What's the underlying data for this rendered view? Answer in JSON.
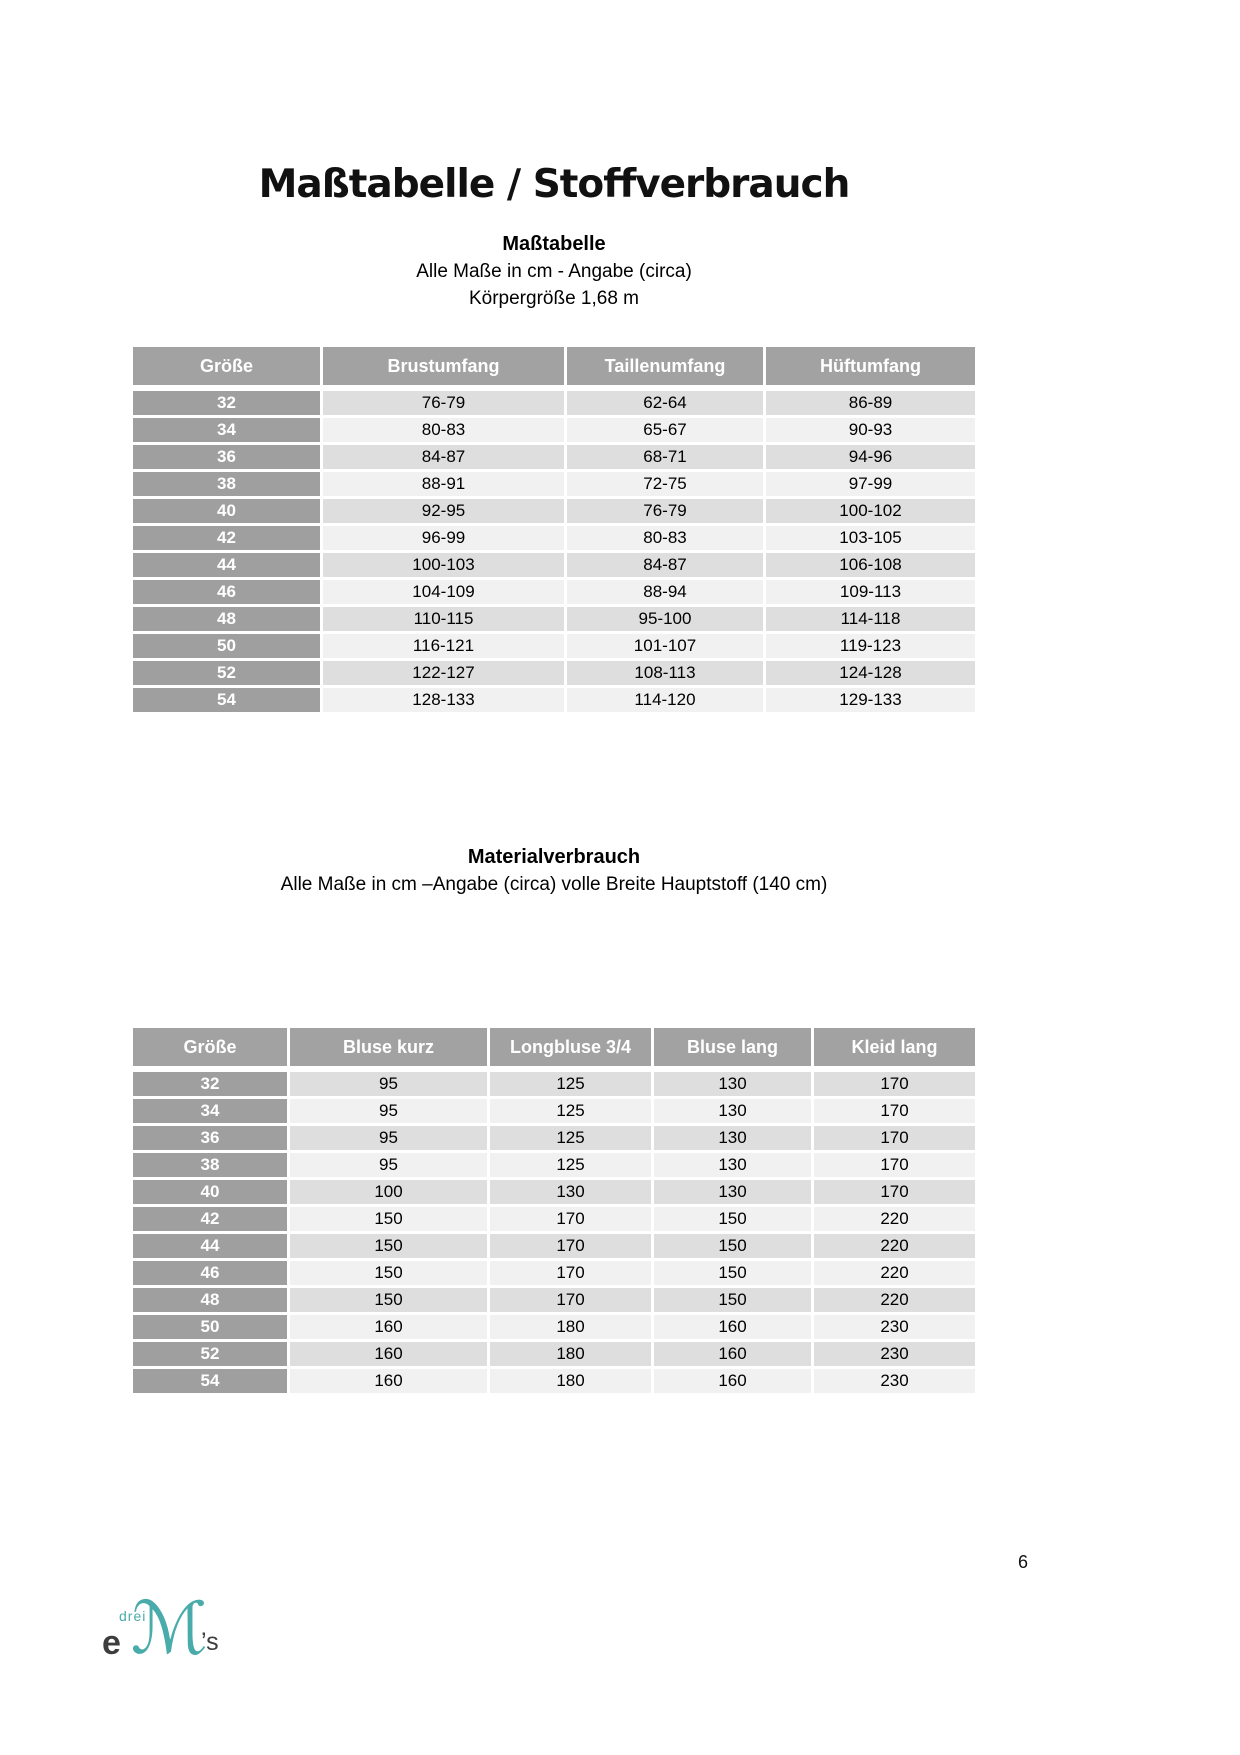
{
  "page": {
    "title": "Maßtabelle / Stoffverbrauch",
    "page_number": "6"
  },
  "sections": [
    {
      "heading": "Maßtabelle",
      "subtitle_lines": [
        "Alle Maße in cm - Angabe (circa)",
        "Körpergröße 1,68 m"
      ]
    },
    {
      "heading": "Materialverbrauch",
      "subtitle_lines": [
        "Alle Maße in cm –Angabe (circa) volle Breite Hauptstoff (140 cm)"
      ]
    }
  ],
  "tables": [
    {
      "name": "masstabelle",
      "columns": [
        "Größe",
        "Brustumfang",
        "Taillenumfang",
        "Hüftumfang"
      ],
      "rows": [
        [
          "32",
          "76-79",
          "62-64",
          "86-89"
        ],
        [
          "34",
          "80-83",
          "65-67",
          "90-93"
        ],
        [
          "36",
          "84-87",
          "68-71",
          "94-96"
        ],
        [
          "38",
          "88-91",
          "72-75",
          "97-99"
        ],
        [
          "40",
          "92-95",
          "76-79",
          "100-102"
        ],
        [
          "42",
          "96-99",
          "80-83",
          "103-105"
        ],
        [
          "44",
          "100-103",
          "84-87",
          "106-108"
        ],
        [
          "46",
          "104-109",
          "88-94",
          "109-113"
        ],
        [
          "48",
          "110-115",
          "95-100",
          "114-118"
        ],
        [
          "50",
          "116-121",
          "101-107",
          "119-123"
        ],
        [
          "52",
          "122-127",
          "108-113",
          "124-128"
        ],
        [
          "54",
          "128-133",
          "114-120",
          "129-133"
        ]
      ]
    },
    {
      "name": "materialverbrauch",
      "columns": [
        "Größe",
        "Bluse kurz",
        "Longbluse 3/4",
        "Bluse lang",
        "Kleid lang"
      ],
      "rows": [
        [
          "32",
          "95",
          "125",
          "130",
          "170"
        ],
        [
          "34",
          "95",
          "125",
          "130",
          "170"
        ],
        [
          "36",
          "95",
          "125",
          "130",
          "170"
        ],
        [
          "38",
          "95",
          "125",
          "130",
          "170"
        ],
        [
          "40",
          "100",
          "130",
          "130",
          "170"
        ],
        [
          "42",
          "150",
          "170",
          "150",
          "220"
        ],
        [
          "44",
          "150",
          "170",
          "150",
          "220"
        ],
        [
          "46",
          "150",
          "170",
          "150",
          "220"
        ],
        [
          "48",
          "150",
          "170",
          "150",
          "220"
        ],
        [
          "50",
          "160",
          "180",
          "160",
          "230"
        ],
        [
          "52",
          "160",
          "180",
          "160",
          "230"
        ],
        [
          "54",
          "160",
          "180",
          "160",
          "230"
        ]
      ]
    }
  ],
  "logo": {
    "brand": "drei eM's",
    "drei": "drei",
    "e": "e",
    "m": "ℳ",
    "s": "’s"
  },
  "colors": {
    "header_gray": "#a2a2a2",
    "size_column_gray": "#9f9f9f",
    "row_odd": "#dedede",
    "row_even": "#f1f1f1",
    "logo_teal": "#4aabab",
    "logo_dark": "#3d3d3d"
  }
}
